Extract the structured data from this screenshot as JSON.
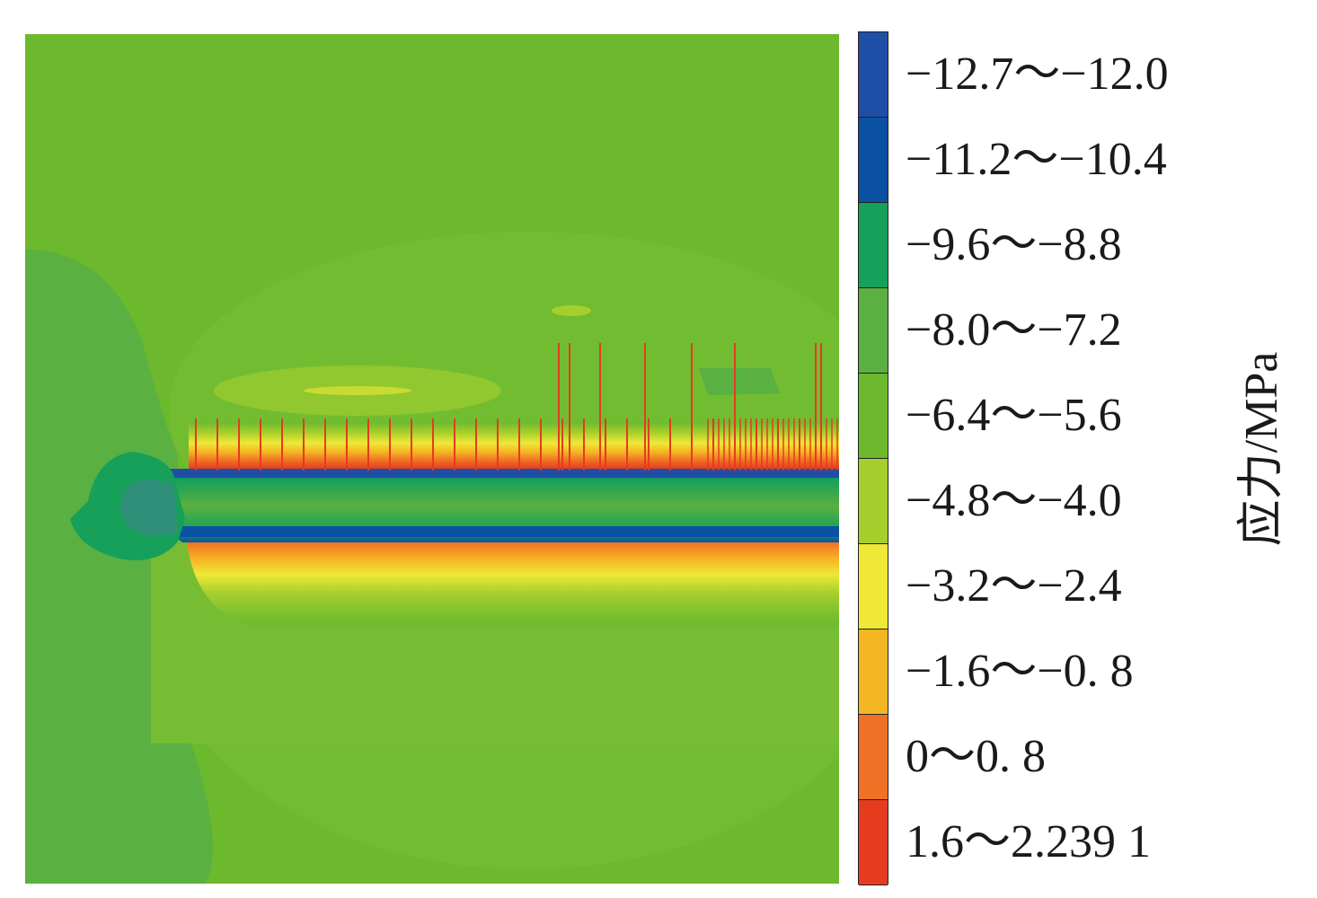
{
  "chart_data": {
    "type": "heatmap",
    "title": "",
    "colorbar_label": "应力/MPa",
    "legend_placement": "right",
    "bins": [
      {
        "label": "−12.7～−12.0",
        "color": "#1f4ea6"
      },
      {
        "label": "−11.2～−10.4",
        "color": "#0a51a3"
      },
      {
        "label": "−9.6～−8.8",
        "color": "#16a05a"
      },
      {
        "label": "−8.0～−7.2",
        "color": "#5ab041"
      },
      {
        "label": "−6.4～−5.6",
        "color": "#6cb92d"
      },
      {
        "label": "−4.8～−4.0",
        "color": "#a6cf2e"
      },
      {
        "label": "−3.2～−2.4",
        "color": "#efe837"
      },
      {
        "label": "−1.6～−0. 8",
        "color": "#f5b623"
      },
      {
        "label": "0～0. 8",
        "color": "#ef7125"
      },
      {
        "label": "1.6～2.239 1",
        "color": "#e63b1f"
      }
    ]
  }
}
